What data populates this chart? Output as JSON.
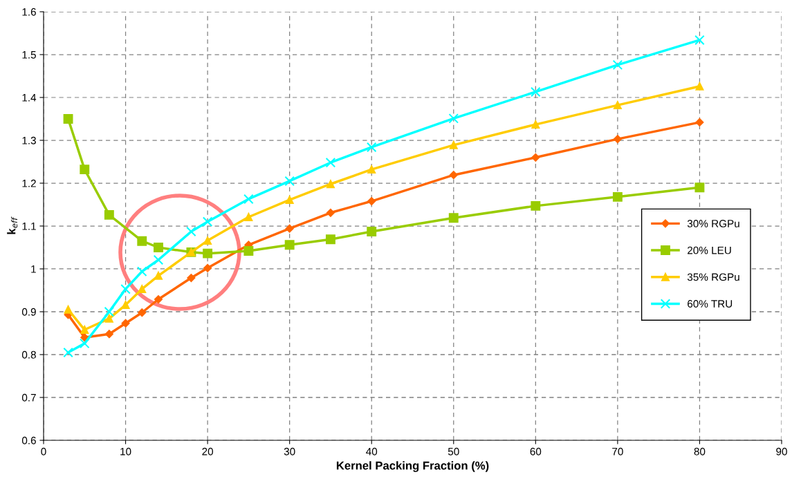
{
  "chart_data": {
    "type": "line",
    "xlabel": "Kernel Packing Fraction (%)",
    "ylabel": "k$_{eff}$",
    "xlim": [
      0,
      90
    ],
    "xticks": [
      0,
      10,
      20,
      30,
      40,
      50,
      60,
      70,
      80,
      90
    ],
    "ylim": [
      0.6,
      1.6
    ],
    "yticks": [
      0.6,
      0.7,
      0.8,
      0.9,
      1,
      1.1,
      1.2,
      1.3,
      1.4,
      1.5,
      1.6
    ],
    "grid": true,
    "legend": "right",
    "series": [
      {
        "name": "30% RGPu",
        "color": "#ff6600",
        "marker": "diamond",
        "x": [
          3,
          5,
          8,
          10,
          12,
          14,
          18,
          20,
          25,
          30,
          35,
          40,
          50,
          60,
          70,
          80
        ],
        "values": [
          0.893,
          0.84,
          0.848,
          0.873,
          0.898,
          0.929,
          0.979,
          1.002,
          1.056,
          1.094,
          1.131,
          1.158,
          1.219,
          1.26,
          1.303,
          1.342
        ]
      },
      {
        "name": "20% LEU",
        "color": "#99cc00",
        "marker": "square",
        "x": [
          3,
          5,
          8,
          12,
          14,
          18,
          20,
          25,
          30,
          35,
          40,
          50,
          60,
          70,
          80
        ],
        "values": [
          1.35,
          1.232,
          1.126,
          1.065,
          1.05,
          1.039,
          1.036,
          1.042,
          1.056,
          1.069,
          1.087,
          1.119,
          1.147,
          1.168,
          1.19
        ]
      },
      {
        "name": "35% RGPu",
        "color": "#ffcc00",
        "marker": "triangle",
        "x": [
          3,
          5,
          8,
          10,
          12,
          14,
          18,
          20,
          25,
          30,
          35,
          40,
          50,
          60,
          70,
          80
        ],
        "values": [
          0.905,
          0.858,
          0.884,
          0.916,
          0.953,
          0.984,
          1.039,
          1.066,
          1.121,
          1.161,
          1.198,
          1.232,
          1.289,
          1.337,
          1.382,
          1.426
        ]
      },
      {
        "name": "60% TRU",
        "color": "#00ffff",
        "marker": "cross",
        "x": [
          3,
          5,
          8,
          10,
          12,
          14,
          18,
          20,
          25,
          30,
          35,
          40,
          50,
          60,
          70,
          80
        ],
        "values": [
          0.805,
          0.826,
          0.9,
          0.953,
          0.994,
          1.021,
          1.087,
          1.11,
          1.163,
          1.205,
          1.248,
          1.284,
          1.351,
          1.413,
          1.476,
          1.534
        ]
      }
    ]
  }
}
